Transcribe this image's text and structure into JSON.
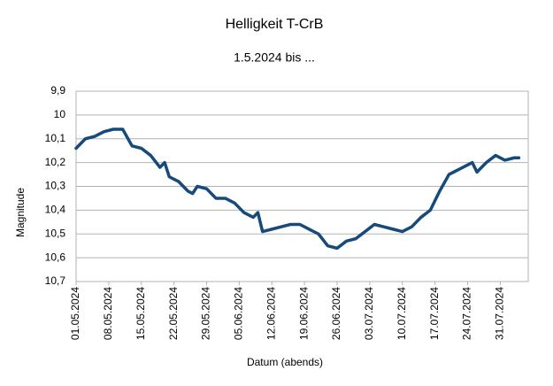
{
  "chart_data": {
    "type": "line",
    "title": "Helligkeit T-CrB",
    "subtitle": "1.5.2024 bis ...",
    "x_label": "Datum (abends)",
    "y_label": "Magnitude",
    "x": [
      "01.05.2024",
      "03.05.2024",
      "05.05.2024",
      "07.05.2024",
      "09.05.2024",
      "11.05.2024",
      "13.05.2024",
      "15.05.2024",
      "17.05.2024",
      "19.05.2024",
      "20.05.2024",
      "21.05.2024",
      "23.05.2024",
      "25.05.2024",
      "26.05.2024",
      "27.05.2024",
      "29.05.2024",
      "31.05.2024",
      "02.06.2024",
      "04.06.2024",
      "06.06.2024",
      "08.06.2024",
      "09.06.2024",
      "10.06.2024",
      "12.06.2024",
      "14.06.2024",
      "16.06.2024",
      "18.06.2024",
      "20.06.2024",
      "22.06.2024",
      "24.06.2024",
      "26.06.2024",
      "28.06.2024",
      "30.06.2024",
      "02.07.2024",
      "04.07.2024",
      "06.07.2024",
      "08.07.2024",
      "10.07.2024",
      "12.07.2024",
      "14.07.2024",
      "16.07.2024",
      "18.07.2024",
      "20.07.2024",
      "22.07.2024",
      "24.07.2024",
      "25.07.2024",
      "26.07.2024",
      "28.07.2024",
      "30.07.2024",
      "01.08.2024",
      "03.08.2024",
      "04.08.2024"
    ],
    "series": [
      {
        "name": "Magnitude",
        "color": "#164a7a",
        "values": [
          10.14,
          10.1,
          10.09,
          10.07,
          10.06,
          10.06,
          10.13,
          10.14,
          10.17,
          10.22,
          10.2,
          10.26,
          10.28,
          10.32,
          10.33,
          10.3,
          10.31,
          10.35,
          10.35,
          10.37,
          10.41,
          10.43,
          10.41,
          10.49,
          10.48,
          10.47,
          10.46,
          10.46,
          10.48,
          10.5,
          10.55,
          10.56,
          10.53,
          10.52,
          10.49,
          10.46,
          10.47,
          10.48,
          10.49,
          10.47,
          10.43,
          10.4,
          10.32,
          10.25,
          10.23,
          10.21,
          10.2,
          10.24,
          10.2,
          10.17,
          10.19,
          10.18,
          10.18
        ]
      }
    ],
    "xlim": [
      "01.05.2024",
      "06.08.2024"
    ],
    "xticks": [
      "01.05.2024",
      "08.05.2024",
      "15.05.2024",
      "22.05.2024",
      "29.05.2024",
      "05.06.2024",
      "12.06.2024",
      "19.06.2024",
      "26.06.2024",
      "03.07.2024",
      "10.07.2024",
      "17.07.2024",
      "24.07.2024",
      "31.07.2024"
    ],
    "ylim": [
      9.9,
      10.7
    ],
    "y_inverted": true,
    "yticks": [
      {
        "value": 9.9,
        "label": "9,9"
      },
      10,
      {
        "value": 10.1,
        "label": "10,1"
      },
      {
        "value": 10.2,
        "label": "10,2"
      },
      {
        "value": 10.3,
        "label": "10,3"
      },
      {
        "value": 10.4,
        "label": "10,4"
      },
      {
        "value": 10.5,
        "label": "10,5"
      },
      {
        "value": 10.6,
        "label": "10,6"
      },
      {
        "value": 10.7,
        "label": "10,7"
      }
    ],
    "grid": true
  }
}
